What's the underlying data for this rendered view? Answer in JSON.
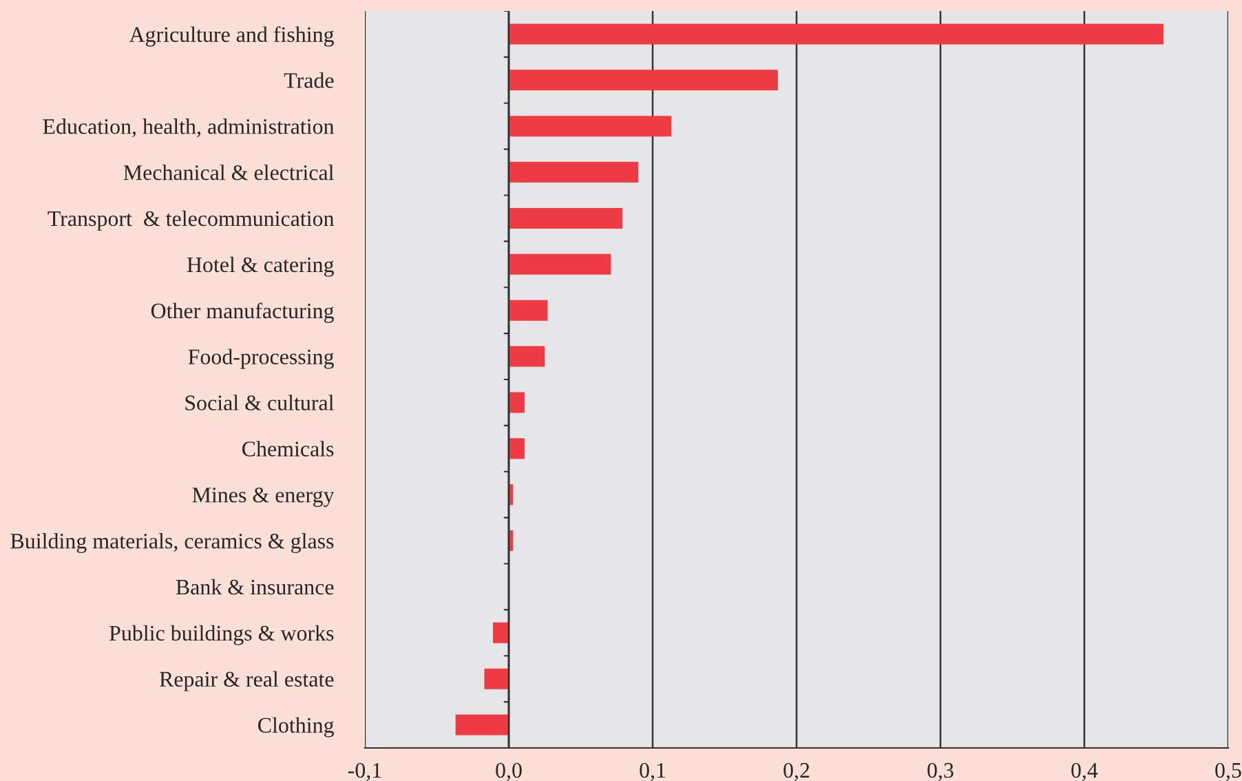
{
  "chart_data": {
    "type": "bar",
    "orientation": "horizontal",
    "categories": [
      "Agriculture and fishing",
      "Trade",
      "Education, health, administration",
      "Mechanical & electrical",
      "Transport  & telecommunication",
      "Hotel & catering",
      "Other manufacturing",
      "Food-processing",
      "Social & cultural",
      "Chemicals",
      "Mines & energy",
      "Building materials, ceramics & glass",
      "Bank & insurance",
      "Public buildings & works",
      "Repair & real estate",
      "Clothing"
    ],
    "values": [
      0.455,
      0.187,
      0.113,
      0.09,
      0.079,
      0.071,
      0.027,
      0.025,
      0.011,
      0.011,
      0.003,
      0.003,
      0.0,
      -0.011,
      -0.017,
      -0.037
    ],
    "color": "#ee3b44",
    "xlim": [
      -0.1,
      0.5
    ],
    "xticks": [
      {
        "value": -0.1,
        "label": "-0,1"
      },
      {
        "value": 0.0,
        "label": "0,0"
      },
      {
        "value": 0.1,
        "label": "0,1"
      },
      {
        "value": 0.2,
        "label": "0,2"
      },
      {
        "value": 0.3,
        "label": "0,3"
      },
      {
        "value": 0.4,
        "label": "0,4"
      },
      {
        "value": 0.5,
        "label": "0,5"
      }
    ],
    "grid": "x",
    "legend": false
  }
}
